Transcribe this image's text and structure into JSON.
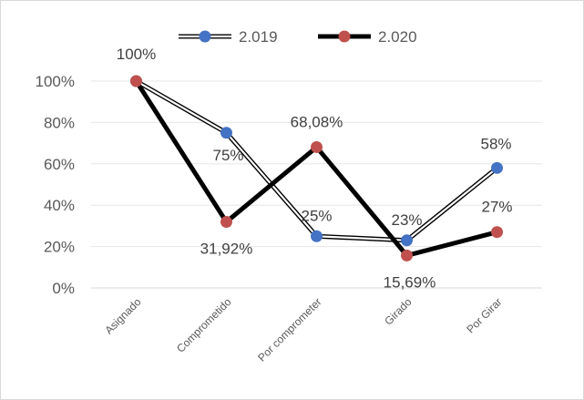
{
  "chart_data": {
    "type": "line",
    "title": "",
    "xlabel": "",
    "ylabel": "",
    "categories": [
      "Asignado",
      "Comprometido",
      "Por comprometer",
      "Girado",
      "Por Girar"
    ],
    "ylim": [
      0,
      100
    ],
    "yticks": [
      "0%",
      "20%",
      "40%",
      "60%",
      "80%",
      "100%"
    ],
    "legend_position": "top",
    "series": [
      {
        "name": "2.019",
        "values": [
          100,
          75,
          25,
          23,
          58
        ],
        "labels": [
          "100%",
          "75%",
          "25%",
          "23%",
          "58%"
        ],
        "line_style": "double",
        "marker_color": "#4472c4"
      },
      {
        "name": "2.020",
        "values": [
          100,
          31.92,
          68.08,
          15.69,
          27
        ],
        "labels": [
          "",
          "31,92%",
          "68,08%",
          "15,69%",
          "27%"
        ],
        "line_style": "thick",
        "marker_color": "#c0504d"
      }
    ]
  }
}
